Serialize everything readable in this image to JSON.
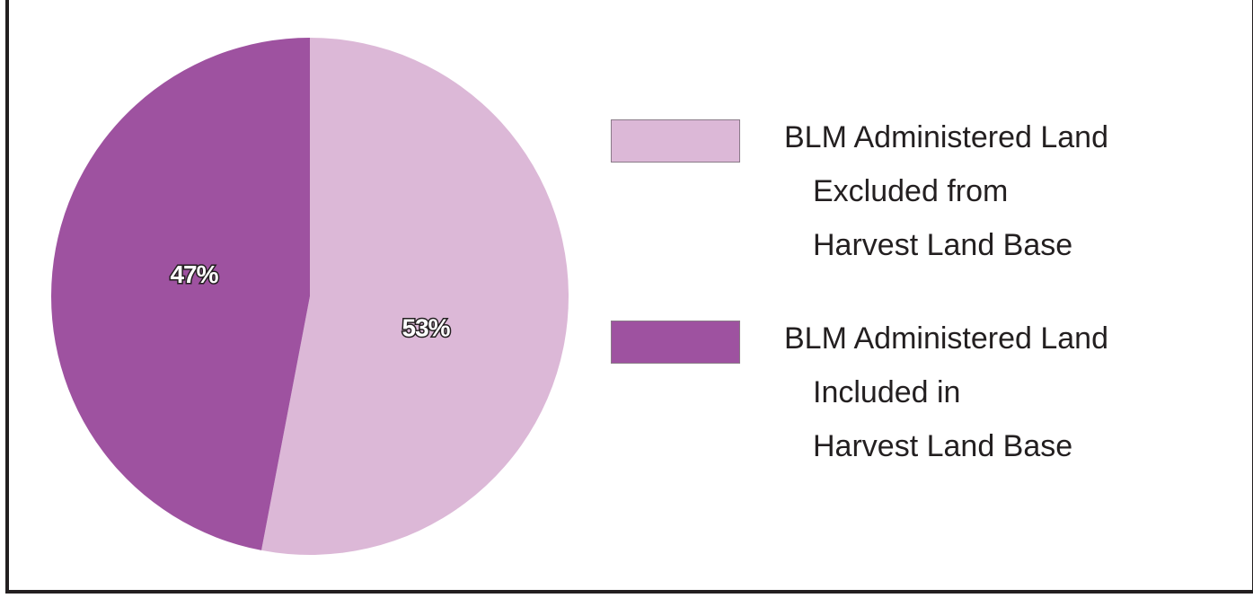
{
  "chart_data": {
    "type": "pie",
    "title": "",
    "slices": [
      {
        "name": "BLM Administered Land Excluded from Harvest Land Base",
        "value": 53,
        "label": "53%",
        "color": "#dcb8d7"
      },
      {
        "name": "BLM Administered Land Included in Harvest Land Base",
        "value": 47,
        "label": "47%",
        "color": "#9e52a0"
      }
    ],
    "legend": {
      "placement": "right",
      "entries": [
        {
          "lines": [
            "BLM Administered Land",
            "Excluded from",
            "Harvest Land Base"
          ],
          "color": "#dcb8d7"
        },
        {
          "lines": [
            "BLM Administered Land",
            "Included in",
            "Harvest Land Base"
          ],
          "color": "#9e52a0"
        }
      ]
    }
  }
}
